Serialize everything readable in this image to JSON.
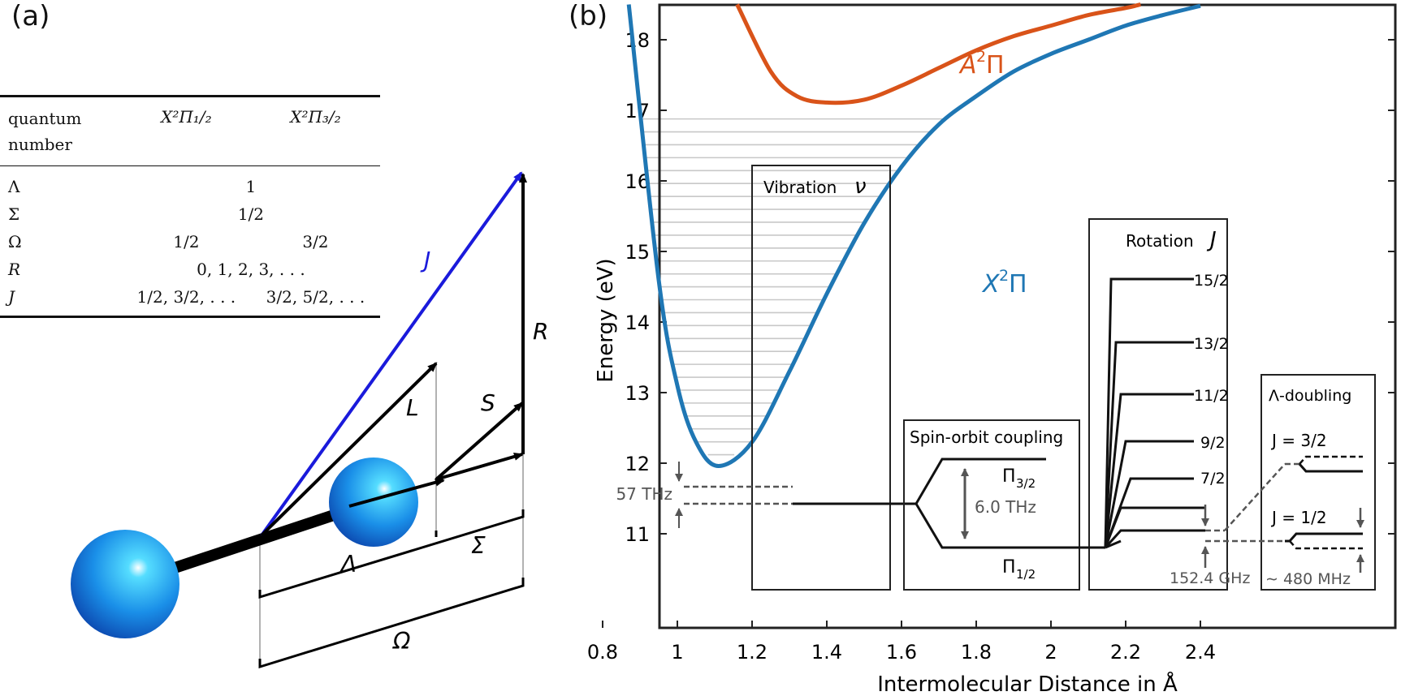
{
  "panel_a": {
    "label": "(a)",
    "table": {
      "header": {
        "col0_line1": "quantum",
        "col0_line2": "number",
        "col1": "X²Π₁/₂",
        "col2": "X²Π₃/₂"
      },
      "rows": [
        {
          "symbol": "Λ",
          "shared": "1"
        },
        {
          "symbol": "Σ",
          "shared": "1/2"
        },
        {
          "symbol": "Ω",
          "c1": "1/2",
          "c2": "3/2"
        },
        {
          "symbol": "R",
          "shared": "0, 1, 2, 3, . . ."
        },
        {
          "symbol": "J",
          "c1": "1/2, 3/2, . . .",
          "c2": "3/2, 5/2, . . ."
        }
      ]
    },
    "vectors": {
      "J": "J",
      "L": "L",
      "S": "S",
      "R": "R"
    },
    "projections": {
      "Lambda": "Λ",
      "Sigma": "Σ",
      "Omega": "Ω"
    },
    "colors": {
      "J_vector": "#1a1adb",
      "atom": "#1e88e5",
      "bond": "#000000"
    }
  },
  "panel_b": {
    "label": "(b)",
    "xlabel": "Intermolecular Distance in Å",
    "ylabel": "Energy (eV)",
    "xticks": [
      "0.8",
      "1",
      "1.2",
      "1.4",
      "1.6",
      "1.8",
      "2",
      "2.2",
      "2.4"
    ],
    "yticks": [
      "11",
      "12",
      "13",
      "14",
      "15",
      "16",
      "17",
      "18"
    ],
    "curve_labels": {
      "A_base": "A",
      "A_sup": "2",
      "A_pi": "Π",
      "X_base": "X",
      "X_sup": "2",
      "X_pi": "Π"
    },
    "vibration_box": {
      "title": "Vibration",
      "symbol": "ν",
      "spacing": "57 THz"
    },
    "spin_orbit_box": {
      "title": "Spin-orbit coupling",
      "upper": "Π",
      "upper_sub": "3/2",
      "lower": "Π",
      "lower_sub": "1/2",
      "splitting": "6.0 THz"
    },
    "rotation_box": {
      "title": "Rotation",
      "symbol": "J",
      "levels": [
        "15/2",
        "13/2",
        "11/2",
        "9/2",
        "7/2"
      ],
      "splitting": "152.4 GHz"
    },
    "lambda_box": {
      "title": "Λ-doubling",
      "j_upper": "J = 3/2",
      "j_lower": "J = 1/2",
      "splitting": "∼ 480 MHz"
    },
    "colors": {
      "X_curve": "#1f77b4",
      "A_curve": "#d95319",
      "levels": "#c8c8c8",
      "gray_text": "#555555"
    }
  },
  "chart_data": {
    "type": "line",
    "xlabel": "Intermolecular Distance in Å",
    "ylabel": "Energy (eV)",
    "xlim": [
      0.8,
      2.45
    ],
    "ylim": [
      10.5,
      18.5
    ],
    "series": [
      {
        "name": "X²Π",
        "x": [
          0.87,
          0.95,
          1.0,
          1.05,
          1.11,
          1.2,
          1.3,
          1.4,
          1.5,
          1.6,
          1.7,
          1.8,
          1.9,
          2.0,
          2.1,
          2.2,
          2.3,
          2.4
        ],
        "y": [
          18.5,
          14.6,
          13.1,
          12.3,
          11.96,
          12.3,
          13.3,
          14.4,
          15.4,
          16.2,
          16.8,
          17.2,
          17.55,
          17.8,
          18.0,
          18.2,
          18.35,
          18.48
        ]
      },
      {
        "name": "A²Π",
        "x": [
          1.16,
          1.25,
          1.32,
          1.4,
          1.5,
          1.6,
          1.7,
          1.8,
          1.9,
          2.0,
          2.1,
          2.2,
          2.24
        ],
        "y": [
          18.5,
          17.55,
          17.2,
          17.11,
          17.15,
          17.35,
          17.6,
          17.85,
          18.05,
          18.2,
          18.35,
          18.45,
          18.5
        ]
      }
    ]
  }
}
